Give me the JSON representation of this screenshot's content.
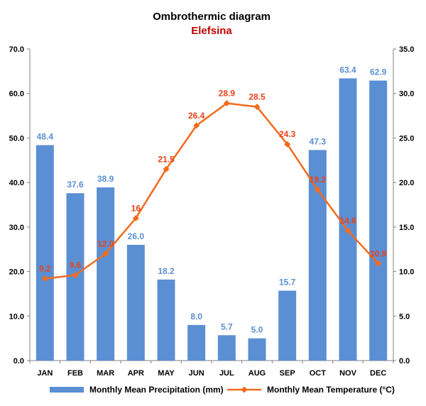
{
  "chart_data": {
    "type": "bar",
    "title": "Ombrothermic diagram",
    "subtitle": "Elefsina",
    "categories": [
      "JAN",
      "FEB",
      "MAR",
      "APR",
      "MAY",
      "JUN",
      "JUL",
      "AUG",
      "SEP",
      "OCT",
      "NOV",
      "DEC"
    ],
    "series": [
      {
        "name": "Monthly Mean Precipitation (mm)",
        "type": "bar",
        "axis": "left",
        "values": [
          48.4,
          37.6,
          38.9,
          26.0,
          18.2,
          8.0,
          5.7,
          5.0,
          15.7,
          47.3,
          63.4,
          62.9
        ],
        "labels": [
          "48.4",
          "37.6",
          "38.9",
          "26.0",
          "18.2",
          "8.0",
          "5.7",
          "5.0",
          "15.7",
          "47.3",
          "63.4",
          "62.9"
        ],
        "color": "#5b8fd4",
        "label_color": "#5b8fd4"
      },
      {
        "name": "Monthly Mean Temperature (°C)",
        "type": "line",
        "axis": "right",
        "values": [
          9.2,
          9.6,
          12.0,
          16,
          21.5,
          26.4,
          28.9,
          28.5,
          24.3,
          19.2,
          14.6,
          10.9
        ],
        "labels": [
          "9.2",
          "9.6",
          "12.0",
          "16",
          "21.5",
          "26.4",
          "28.9",
          "28.5",
          "24.3",
          "19.2",
          "14.6",
          "10.9"
        ],
        "color": "#f26b1d",
        "label_color": "#e8431a"
      }
    ],
    "y_left": {
      "lim": [
        0,
        70
      ],
      "ticks": [
        0,
        10,
        20,
        30,
        40,
        50,
        60,
        70
      ],
      "tick_labels": [
        "0.0",
        "10.0",
        "20.0",
        "30.0",
        "40.0",
        "50.0",
        "60.0",
        "70.0"
      ]
    },
    "y_right": {
      "lim": [
        0,
        35
      ],
      "ticks": [
        0,
        5,
        10,
        15,
        20,
        25,
        30,
        35
      ],
      "tick_labels": [
        "0.0",
        "5.0",
        "10.0",
        "15.0",
        "20.0",
        "25.0",
        "30.0",
        "35.0"
      ]
    },
    "grid": false,
    "legend_position": "bottom",
    "title_color": "#000000",
    "subtitle_color": "#c00000"
  }
}
